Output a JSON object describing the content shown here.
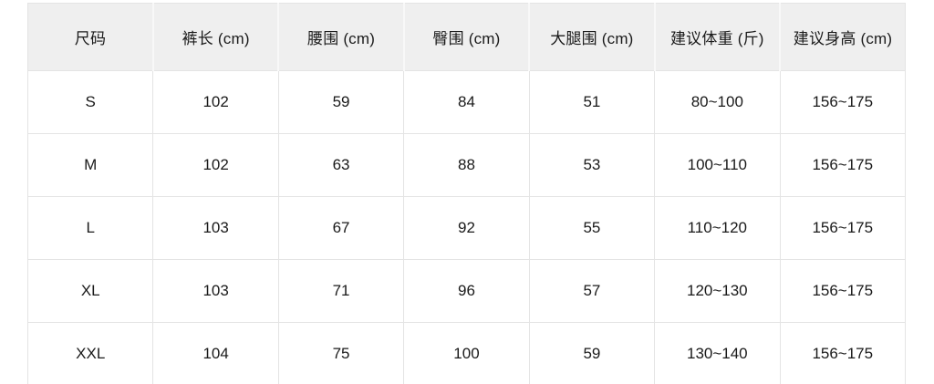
{
  "theme": {
    "header_bg": "#efefef",
    "header_divider": "#f8f8f8",
    "border_color": "#e4e4e4",
    "text_color": "#1a1a1a"
  },
  "chart_data": {
    "type": "table",
    "title": "",
    "columns": [
      "尺码",
      "裤长 (cm)",
      "腰围 (cm)",
      "臀围 (cm)",
      "大腿围 (cm)",
      "建议体重 (斤)",
      "建议身高 (cm)"
    ],
    "rows": [
      [
        "S",
        "102",
        "59",
        "84",
        "51",
        "80~100",
        "156~175"
      ],
      [
        "M",
        "102",
        "63",
        "88",
        "53",
        "100~110",
        "156~175"
      ],
      [
        "L",
        "103",
        "67",
        "92",
        "55",
        "110~120",
        "156~175"
      ],
      [
        "XL",
        "103",
        "71",
        "96",
        "57",
        "120~130",
        "156~175"
      ],
      [
        "XXL",
        "104",
        "75",
        "100",
        "59",
        "130~140",
        "156~175"
      ]
    ]
  }
}
